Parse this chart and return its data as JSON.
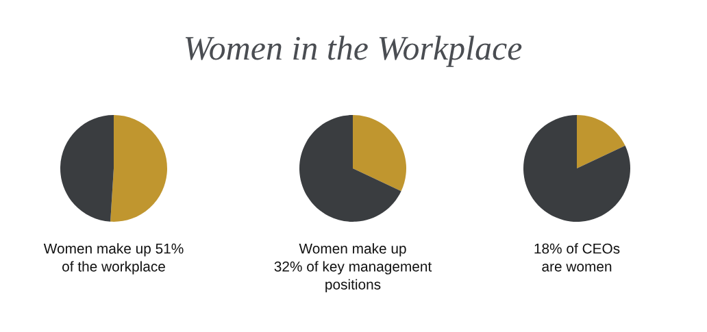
{
  "chart_data": [
    {
      "type": "pie",
      "categories": [
        null,
        null
      ],
      "values": [
        51,
        49
      ],
      "colors": [
        "#c0962f",
        "#3a3d40"
      ],
      "xlabel": "Women make up 51%\nof the workplace"
    },
    {
      "type": "pie",
      "title": "Women in the Workplace",
      "categories": [
        null,
        null
      ],
      "values": [
        32,
        68
      ],
      "colors": [
        "#c0962f",
        "#3a3d40"
      ],
      "xlabel": "Women make up\n32% of key management\npositions"
    },
    {
      "type": "pie",
      "categories": [
        null,
        null
      ],
      "values": [
        18,
        82
      ],
      "colors": [
        "#c0962f",
        "#3a3d40"
      ],
      "xlabel": "18% of CEOs\nare women"
    }
  ]
}
